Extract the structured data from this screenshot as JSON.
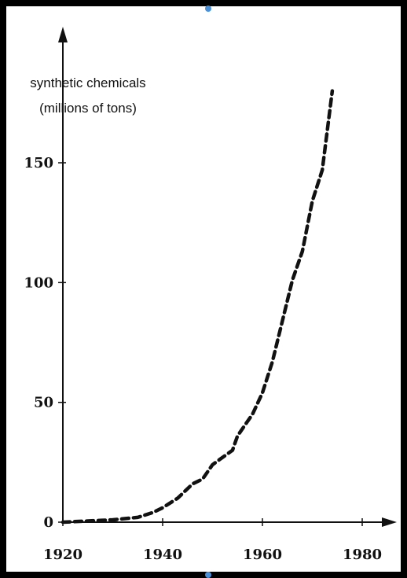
{
  "chart_data": {
    "type": "line",
    "ylabel_lines": [
      "synthetic chemicals",
      "(millions of tons)"
    ],
    "xlabel": "",
    "title": "",
    "xlim": [
      1920,
      1985
    ],
    "ylim": [
      0,
      190
    ],
    "x_ticks": [
      {
        "value": 1920,
        "label": "1920"
      },
      {
        "value": 1940,
        "label": "1940"
      },
      {
        "value": 1960,
        "label": "1960"
      },
      {
        "value": 1980,
        "label": "1980"
      }
    ],
    "y_ticks": [
      {
        "value": 0,
        "label": "0"
      },
      {
        "value": 50,
        "label": "50"
      },
      {
        "value": 100,
        "label": "100"
      },
      {
        "value": 150,
        "label": "150"
      }
    ],
    "series": [
      {
        "line_style": "dashed",
        "color": "#111111",
        "x": [
          1920,
          1925,
          1930,
          1935,
          1938,
          1940,
          1943,
          1946,
          1948,
          1950,
          1952,
          1954,
          1955,
          1957,
          1958,
          1960,
          1962,
          1964,
          1966,
          1968,
          1970,
          1972,
          1974
        ],
        "y": [
          0,
          0.5,
          1,
          2,
          4,
          6,
          10,
          16,
          18,
          24,
          27,
          30,
          36,
          42,
          45,
          54,
          67,
          84,
          101,
          113,
          134,
          147,
          180
        ]
      }
    ],
    "grid": false,
    "legend": "none"
  }
}
